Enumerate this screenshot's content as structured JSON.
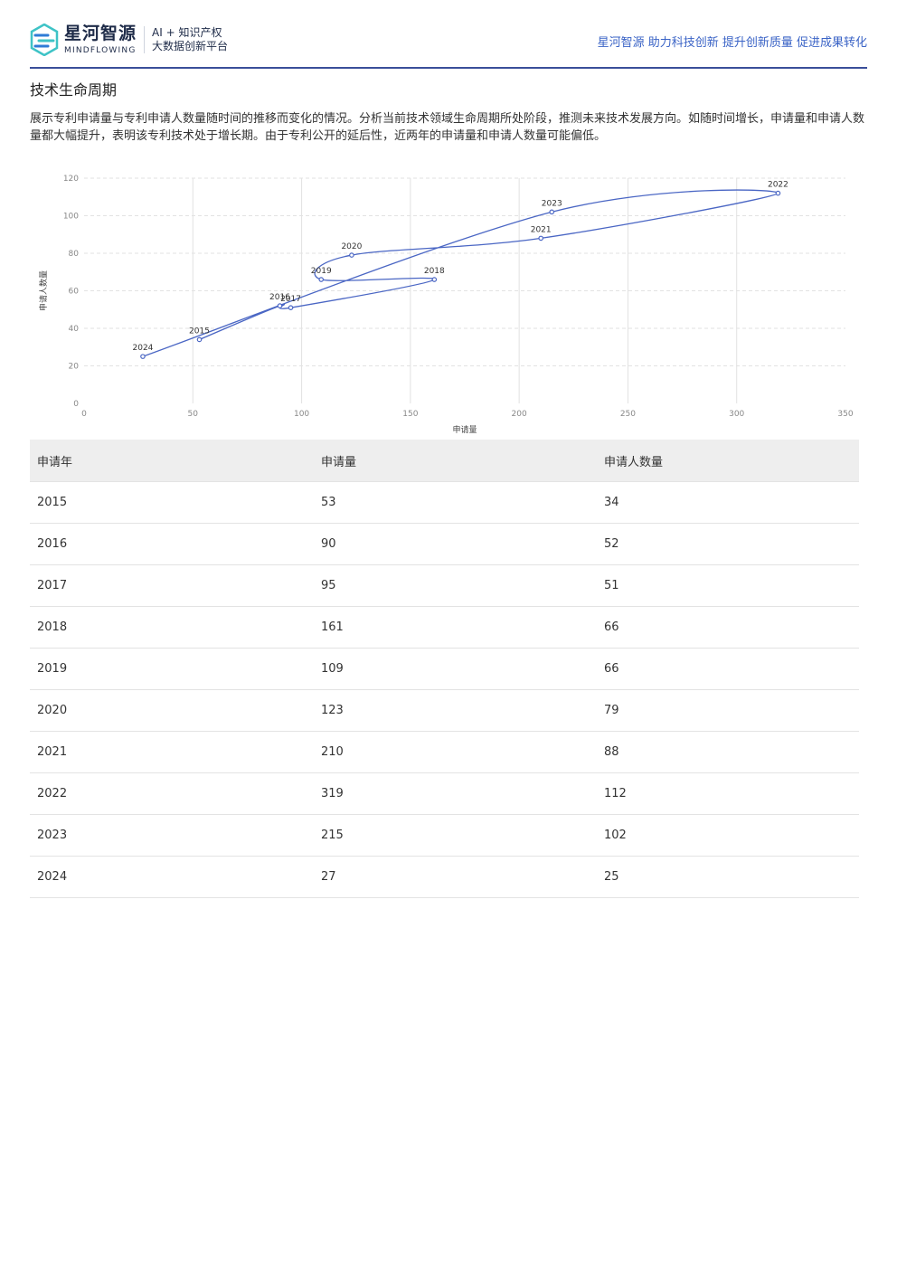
{
  "header": {
    "brand_cn": "星河智源",
    "brand_en": "MINDFLOWING",
    "tagline1": "AI + 知识产权",
    "tagline2": "大数据创新平台",
    "slogan": "星河智源 助力科技创新 提升创新质量 促进成果转化",
    "accent_color": "#3a63c6"
  },
  "section": {
    "title": "技术生命周期",
    "description": "展示专利申请量与专利申请人数量随时间的推移而变化的情况。分析当前技术领域生命周期所处阶段，推测未来技术发展方向。如随时间增长，申请量和申请人数量都大幅提升，表明该专利技术处于增长期。由于专利公开的延后性，近两年的申请量和申请人数量可能偏低。"
  },
  "chart_data": {
    "type": "scatter",
    "connected": true,
    "xlabel": "申请量",
    "ylabel": "申请人数量",
    "xlim": [
      0,
      350
    ],
    "ylim": [
      0,
      120
    ],
    "x_ticks": [
      0,
      50,
      100,
      150,
      200,
      250,
      300,
      350
    ],
    "y_ticks": [
      0,
      20,
      40,
      60,
      80,
      100,
      120
    ],
    "grid": true,
    "line_color": "#4a66c4",
    "points": [
      {
        "label": "2015",
        "x": 53,
        "y": 34
      },
      {
        "label": "2016",
        "x": 90,
        "y": 52
      },
      {
        "label": "2017",
        "x": 95,
        "y": 51
      },
      {
        "label": "2018",
        "x": 161,
        "y": 66
      },
      {
        "label": "2019",
        "x": 109,
        "y": 66
      },
      {
        "label": "2020",
        "x": 123,
        "y": 79
      },
      {
        "label": "2021",
        "x": 210,
        "y": 88
      },
      {
        "label": "2022",
        "x": 319,
        "y": 112
      },
      {
        "label": "2023",
        "x": 215,
        "y": 102
      },
      {
        "label": "2024",
        "x": 27,
        "y": 25
      }
    ]
  },
  "table": {
    "headers": [
      "申请年",
      "申请量",
      "申请人数量"
    ],
    "rows": [
      [
        "2015",
        "53",
        "34"
      ],
      [
        "2016",
        "90",
        "52"
      ],
      [
        "2017",
        "95",
        "51"
      ],
      [
        "2018",
        "161",
        "66"
      ],
      [
        "2019",
        "109",
        "66"
      ],
      [
        "2020",
        "123",
        "79"
      ],
      [
        "2021",
        "210",
        "88"
      ],
      [
        "2022",
        "319",
        "112"
      ],
      [
        "2023",
        "215",
        "102"
      ],
      [
        "2024",
        "27",
        "25"
      ]
    ]
  }
}
